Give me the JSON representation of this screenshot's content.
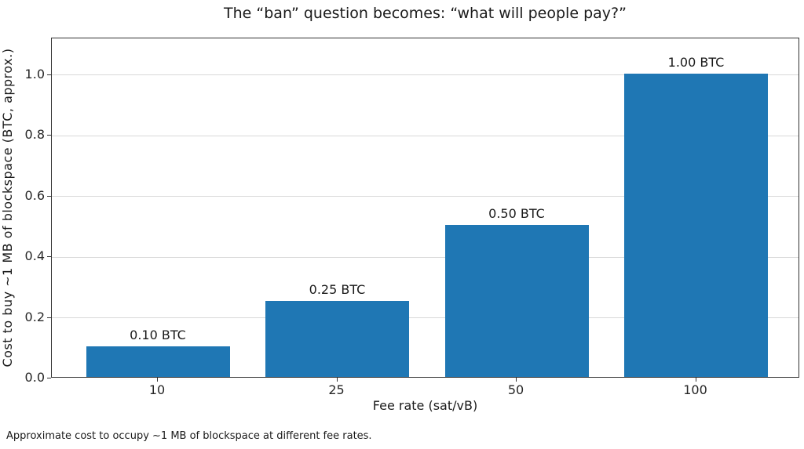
{
  "page": {
    "background": "#ffffff"
  },
  "chart_data": {
    "type": "bar",
    "title": "The “ban” question becomes: “what will people pay?”",
    "categories": [
      "10",
      "25",
      "50",
      "100"
    ],
    "values": [
      0.1,
      0.25,
      0.5,
      1.0
    ],
    "bar_labels": [
      "0.10 BTC",
      "0.25 BTC",
      "0.50 BTC",
      "1.00 BTC"
    ],
    "xlabel": "Fee rate (sat/vB)",
    "ylabel": "Cost to buy ~1 MB of blockspace (BTC, approx.)",
    "yticks": [
      0.0,
      0.2,
      0.4,
      0.6,
      0.8,
      1.0
    ],
    "ytick_labels": [
      "0.0",
      "0.2",
      "0.4",
      "0.6",
      "0.8",
      "1.0"
    ],
    "ylim": [
      0,
      1.12
    ],
    "grid": "horizontal",
    "legend": "none",
    "bar_color": "#1f77b4",
    "grid_color": "#d9d9d9",
    "spine_color": "#333333",
    "text_color": "#1a1a1a"
  },
  "caption": "Approximate cost to occupy ~1 MB of blockspace at different fee rates."
}
